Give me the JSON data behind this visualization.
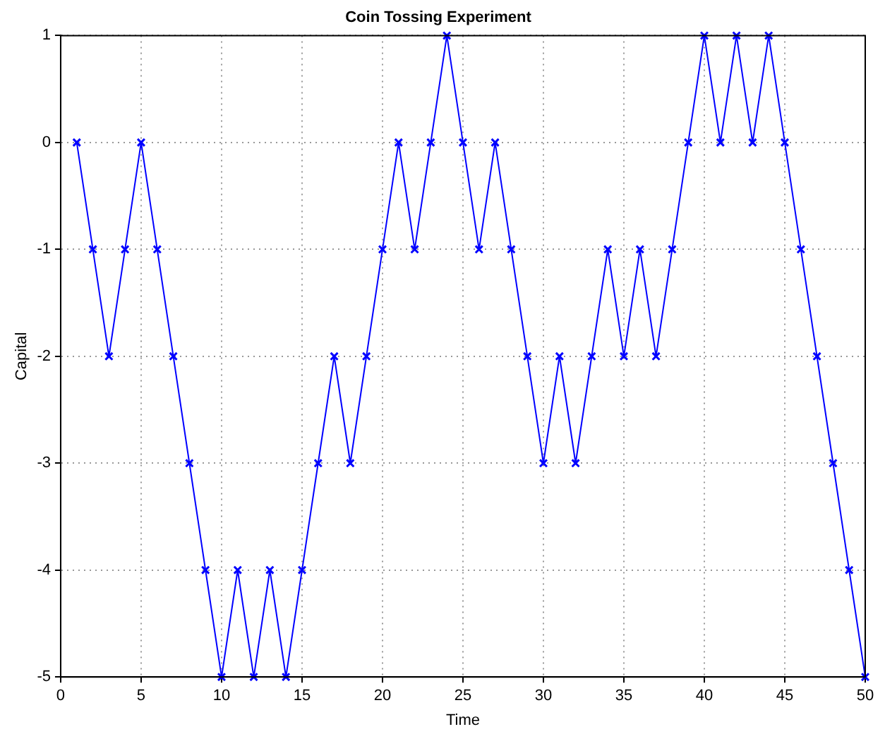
{
  "chart_data": {
    "type": "line",
    "title": "Coin Tossing Experiment",
    "xlabel": "Time",
    "ylabel": "Capital",
    "x": [
      1,
      2,
      3,
      4,
      5,
      6,
      7,
      8,
      9,
      10,
      11,
      12,
      13,
      14,
      15,
      16,
      17,
      18,
      19,
      20,
      21,
      22,
      23,
      24,
      25,
      26,
      27,
      28,
      29,
      30,
      31,
      32,
      33,
      34,
      35,
      36,
      37,
      38,
      39,
      40,
      41,
      42,
      43,
      44,
      45,
      46,
      47,
      48,
      49,
      50
    ],
    "series": [
      {
        "color": "#0000ff",
        "values": [
          0,
          -1,
          -2,
          -1,
          0,
          -1,
          -2,
          -3,
          -4,
          -5,
          -4,
          -5,
          -4,
          -5,
          -4,
          -3,
          -2,
          -3,
          -2,
          -1,
          0,
          -1,
          0,
          1,
          0,
          -1,
          0,
          -1,
          -2,
          -3,
          -2,
          -3,
          -2,
          -1,
          -2,
          -1,
          -2,
          -1,
          0,
          1,
          0,
          1,
          0,
          1,
          0,
          -1,
          -2,
          -3,
          -4,
          -5
        ]
      }
    ],
    "xlim": [
      0,
      50
    ],
    "xticks": [
      0,
      5,
      10,
      15,
      20,
      25,
      30,
      35,
      40,
      45,
      50
    ],
    "ylim": [
      -5,
      1
    ],
    "yticks": [
      -5,
      -4,
      -3,
      -2,
      -1,
      0,
      1
    ],
    "grid": true,
    "marker": "cross",
    "line_style": "solid",
    "legend": false
  }
}
